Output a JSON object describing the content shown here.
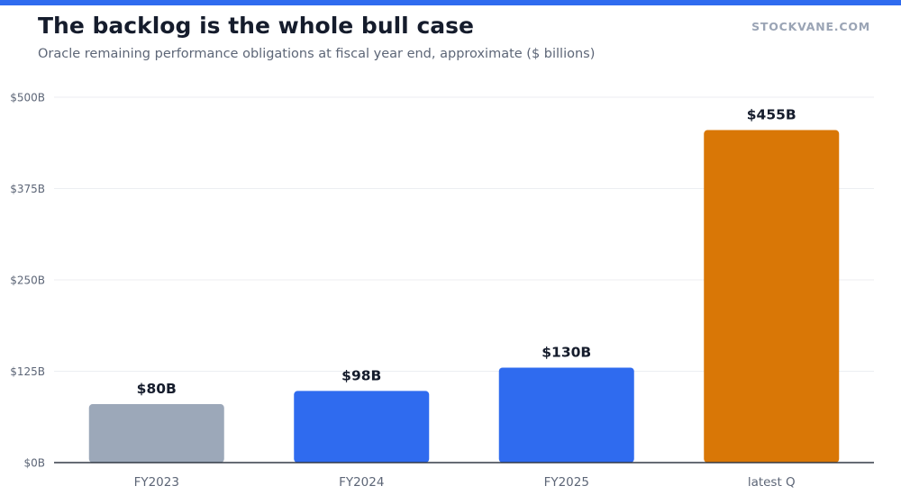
{
  "header": {
    "title": "The backlog is the whole bull case",
    "subtitle": "Oracle remaining performance obligations at fiscal year end, approximate ($ billions)",
    "brand": "STOCKVANE.COM"
  },
  "colors": {
    "accent": "#2f6bef",
    "highlight": "#d97706",
    "muted": "#9ca8b9",
    "grid": "#eceef2",
    "axis": "#333a46",
    "label": "#151c2c",
    "tick": "#5d6677"
  },
  "chart_data": {
    "type": "bar",
    "categories": [
      "FY2023",
      "FY2024",
      "FY2025",
      "latest Q"
    ],
    "values": [
      80,
      98,
      130,
      455
    ],
    "value_labels": [
      "$80B",
      "$98B",
      "$130B",
      "$455B"
    ],
    "bar_colors": [
      "#9ca8b9",
      "#2f6bef",
      "#2f6bef",
      "#d97706"
    ],
    "ylim": [
      0,
      500
    ],
    "yticks": [
      0,
      125,
      250,
      375,
      500
    ],
    "ytick_labels": [
      "$0B",
      "$125B",
      "$250B",
      "$375B",
      "$500B"
    ],
    "grid": true,
    "xlabel": "",
    "ylabel": ""
  }
}
